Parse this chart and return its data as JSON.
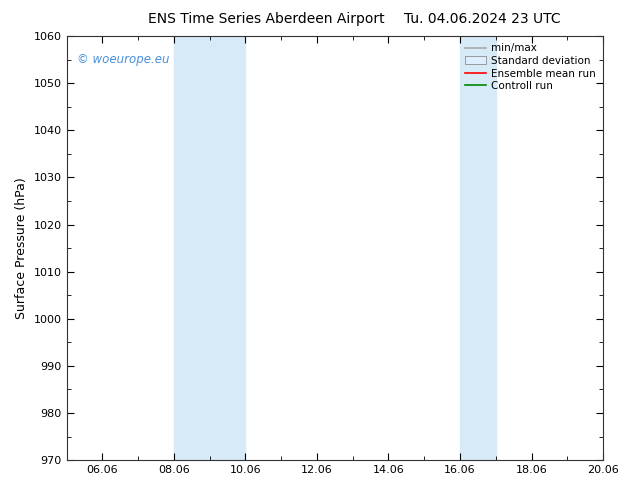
{
  "title_left": "ENS Time Series Aberdeen Airport",
  "title_right": "Tu. 04.06.2024 23 UTC",
  "ylabel": "Surface Pressure (hPa)",
  "ylim": [
    970,
    1060
  ],
  "yticks": [
    970,
    980,
    990,
    1000,
    1010,
    1020,
    1030,
    1040,
    1050,
    1060
  ],
  "xlim": [
    0,
    15
  ],
  "xtick_labels": [
    "06.06",
    "08.06",
    "10.06",
    "12.06",
    "14.06",
    "16.06",
    "18.06",
    "20.06"
  ],
  "xtick_positions": [
    1,
    3,
    5,
    7,
    9,
    11,
    13,
    15
  ],
  "shaded_bands": [
    {
      "xstart": 3.0,
      "xend": 5.0
    },
    {
      "xstart": 11.0,
      "xend": 12.0
    }
  ],
  "shade_color": "#d6eaf8",
  "background_color": "#ffffff",
  "watermark_text": "© woeurope.eu",
  "watermark_color": "#4a90d9",
  "legend_items": [
    {
      "label": "min/max",
      "color": "#aaaaaa",
      "type": "line"
    },
    {
      "label": "Standard deviation",
      "color": "#cccccc",
      "type": "box"
    },
    {
      "label": "Ensemble mean run",
      "color": "#ff0000",
      "type": "line"
    },
    {
      "label": "Controll run",
      "color": "#008800",
      "type": "line"
    }
  ],
  "title_fontsize": 10,
  "ylabel_fontsize": 9,
  "tick_fontsize": 8,
  "legend_fontsize": 7.5
}
